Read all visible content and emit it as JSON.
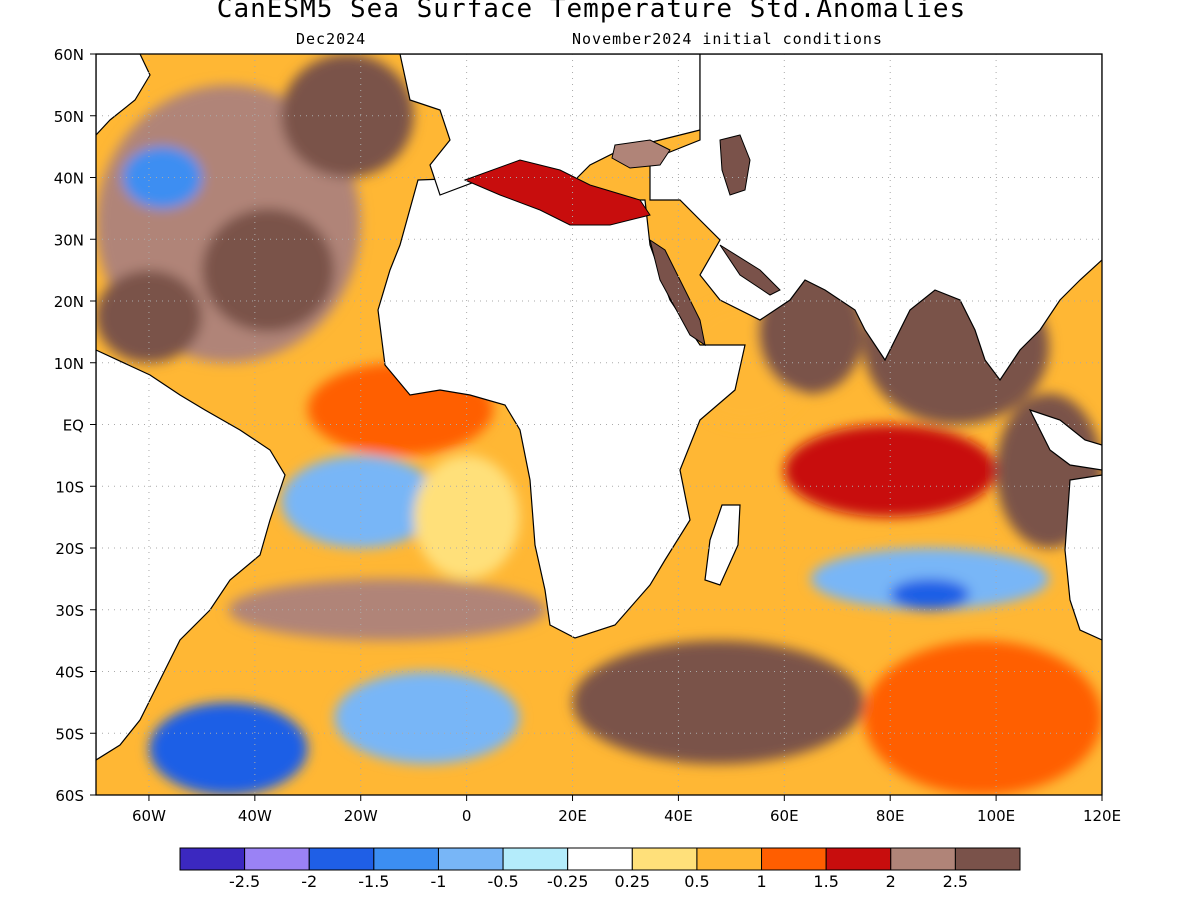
{
  "header": {
    "title": "CanESM5 Sea Surface Temperature Std.Anomalies",
    "valid_month": "Dec2024",
    "initial_conditions": "November2024 initial conditions"
  },
  "map": {
    "lon_range": [
      -70,
      120
    ],
    "lat_range": [
      -60,
      60
    ],
    "y_ticks": [
      "60N",
      "50N",
      "40N",
      "30N",
      "20N",
      "10N",
      "EQ",
      "10S",
      "20S",
      "30S",
      "40S",
      "50S",
      "60S"
    ],
    "x_ticks": [
      "60W",
      "40W",
      "20W",
      "0",
      "20E",
      "40E",
      "60E",
      "80E",
      "100E",
      "120E"
    ],
    "grid": "dotted"
  },
  "colorbar": {
    "colors": [
      "#3b28c0",
      "#9a82f5",
      "#1f5fe6",
      "#3c8ef2",
      "#78b6f7",
      "#b4ecfb",
      "#ffffff",
      "#ffe07a",
      "#ffb734",
      "#ff5e00",
      "#c80d0d",
      "#b08478",
      "#7a524a"
    ],
    "labels": [
      "-2.5",
      "-2",
      "-1.5",
      "-1",
      "-0.5",
      "-0.25",
      "0.25",
      "0.5",
      "1",
      "1.5",
      "2",
      "2.5"
    ]
  },
  "chart_data": {
    "type": "heatmap",
    "title": "CanESM5 Sea Surface Temperature Std.Anomalies",
    "subtitle_left": "Dec2024",
    "subtitle_right": "November2024 initial conditions",
    "x_range": [
      -70,
      120
    ],
    "y_range": [
      -60,
      60
    ],
    "x_unit": "degrees longitude",
    "y_unit": "degrees latitude",
    "color_levels": [
      -2.5,
      -2,
      -1.5,
      -1,
      -0.5,
      -0.25,
      0.25,
      0.5,
      1,
      1.5,
      2,
      2.5
    ],
    "regions": [
      {
        "lon": [
          -70,
          -20
        ],
        "lat": [
          10,
          55
        ],
        "value": 2.2
      },
      {
        "lon": [
          -50,
          -25
        ],
        "lat": [
          15,
          35
        ],
        "value": 2.7
      },
      {
        "lon": [
          -70,
          -50
        ],
        "lat": [
          10,
          25
        ],
        "value": 2.7
      },
      {
        "lon": [
          -65,
          -50
        ],
        "lat": [
          35,
          45
        ],
        "value": -1.2
      },
      {
        "lon": [
          -35,
          -10
        ],
        "lat": [
          40,
          60
        ],
        "value": 2.6
      },
      {
        "lon": [
          -30,
          5
        ],
        "lat": [
          -5,
          10
        ],
        "value": 1.2
      },
      {
        "lon": [
          -35,
          -5
        ],
        "lat": [
          -20,
          -5
        ],
        "value": -0.7
      },
      {
        "lon": [
          -10,
          10
        ],
        "lat": [
          -25,
          -5
        ],
        "value": 0.4
      },
      {
        "lon": [
          -45,
          15
        ],
        "lat": [
          -35,
          -25
        ],
        "value": 2.3
      },
      {
        "lon": [
          -60,
          -30
        ],
        "lat": [
          -60,
          -45
        ],
        "value": -2.0
      },
      {
        "lon": [
          -25,
          10
        ],
        "lat": [
          -55,
          -40
        ],
        "value": -0.8
      },
      {
        "lon": [
          20,
          75
        ],
        "lat": [
          -55,
          -35
        ],
        "value": 2.6
      },
      {
        "lon": [
          40,
          65
        ],
        "lat": [
          0,
          20
        ],
        "value": 0.8
      },
      {
        "lon": [
          55,
          75
        ],
        "lat": [
          5,
          25
        ],
        "value": 2.6
      },
      {
        "lon": [
          75,
          110
        ],
        "lat": [
          0,
          25
        ],
        "value": 2.6
      },
      {
        "lon": [
          60,
          100
        ],
        "lat": [
          -15,
          0
        ],
        "value": 1.6
      },
      {
        "lon": [
          65,
          110
        ],
        "lat": [
          -30,
          -20
        ],
        "value": -0.8
      },
      {
        "lon": [
          80,
          95
        ],
        "lat": [
          -30,
          -25
        ],
        "value": -1.8
      },
      {
        "lon": [
          75,
          120
        ],
        "lat": [
          -60,
          -35
        ],
        "value": 1.3
      },
      {
        "lon": [
          100,
          120
        ],
        "lat": [
          -20,
          5
        ],
        "value": 2.6
      }
    ]
  }
}
